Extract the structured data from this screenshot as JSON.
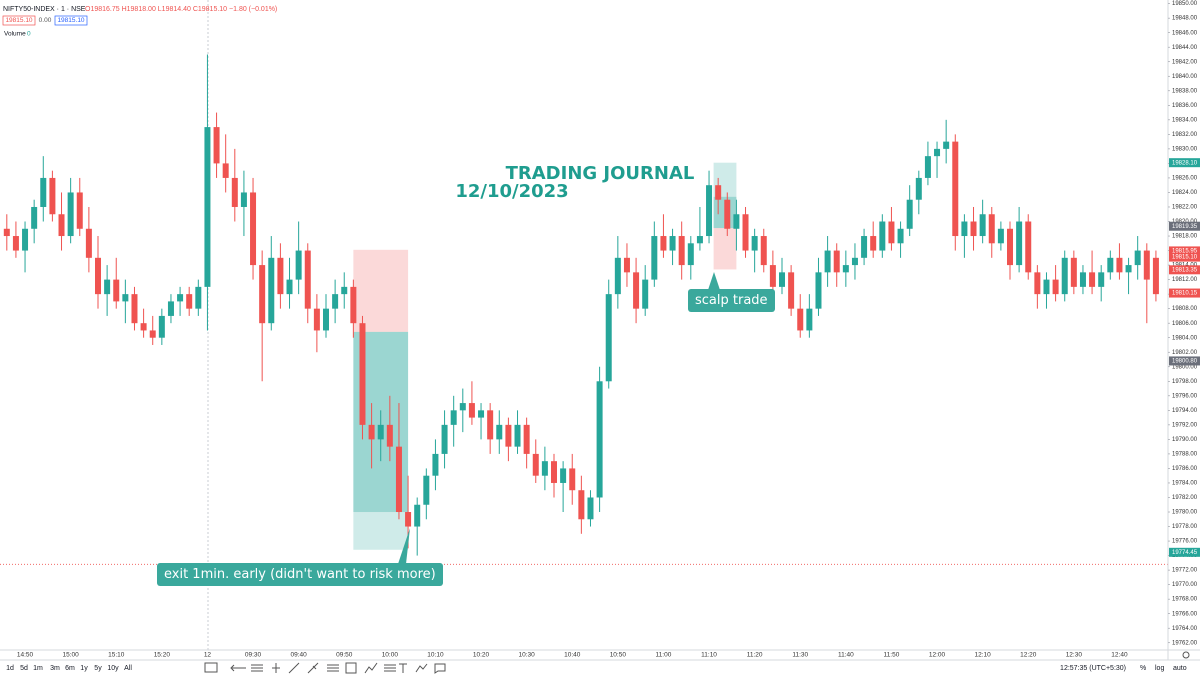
{
  "header": {
    "symbol": "NIFTY50-INDEX · 1 · NSE",
    "ohlc": "O19816.75 H19818.00 L19814.40 C19815.10 −1.80 (−0.01%)",
    "bid": "19815.10",
    "spread": "0.00",
    "ask": "19815.10",
    "volume_label": "Volume",
    "volume_value": "0"
  },
  "chart_data": {
    "type": "candlestick",
    "title": "TRADING JOURNAL",
    "subtitle": "12/10/2023",
    "categories": [
      null,
      null,
      "14:50",
      null,
      null,
      null,
      null,
      "15:00",
      null,
      null,
      null,
      null,
      "15:10",
      null,
      null,
      null,
      null,
      "15:20",
      null,
      null,
      null,
      null,
      "12",
      null,
      null,
      null,
      null,
      "09:30",
      null,
      null,
      null,
      null,
      "09:40",
      null,
      null,
      null,
      null,
      "09:50",
      null,
      null,
      null,
      null,
      "10:00",
      null,
      null,
      null,
      null,
      "10:10",
      null,
      null,
      null,
      null,
      "10:20",
      null,
      null,
      null,
      null,
      "10:30",
      null,
      null,
      null,
      null,
      "10:40",
      null,
      null,
      null,
      null,
      "10:50",
      null,
      null,
      null,
      null,
      "11:00",
      null,
      null,
      null,
      null,
      "11:10",
      null,
      null,
      null,
      null,
      "11:20",
      null,
      null,
      null,
      null,
      "11:30",
      null,
      null,
      null,
      null,
      "11:40",
      null,
      null,
      null,
      null,
      "11:50",
      null,
      null,
      null,
      null,
      "12:00",
      null,
      null,
      null,
      null,
      "12:10",
      null,
      null,
      null,
      null,
      "12:20",
      null,
      null,
      null,
      null,
      "12:30",
      null,
      null,
      null,
      null,
      "12:40",
      null,
      null,
      null,
      null
    ],
    "ohlc": [
      [
        19819,
        19821,
        19816,
        19818
      ],
      [
        19818,
        19820,
        19815,
        19816
      ],
      [
        19816,
        19820,
        19813,
        19819
      ],
      [
        19819,
        19823,
        19817,
        19822
      ],
      [
        19822,
        19829,
        19820,
        19826
      ],
      [
        19826,
        19827,
        19820,
        19821
      ],
      [
        19821,
        19824,
        19816,
        19818
      ],
      [
        19818,
        19826,
        19817,
        19824
      ],
      [
        19824,
        19826,
        19818,
        19819
      ],
      [
        19819,
        19822,
        19813,
        19815
      ],
      [
        19815,
        19818,
        19808,
        19810
      ],
      [
        19810,
        19814,
        19807,
        19812
      ],
      [
        19812,
        19815,
        19808,
        19809
      ],
      [
        19809,
        19812,
        19806,
        19810
      ],
      [
        19810,
        19811,
        19805,
        19806
      ],
      [
        19806,
        19808,
        19804,
        19805
      ],
      [
        19805,
        19807,
        19803,
        19804
      ],
      [
        19804,
        19808,
        19803,
        19807
      ],
      [
        19807,
        19810,
        19806,
        19809
      ],
      [
        19809,
        19811,
        19807,
        19810
      ],
      [
        19810,
        19811,
        19807,
        19808
      ],
      [
        19808,
        19812,
        19807,
        19811
      ],
      [
        19811,
        19843,
        19805,
        19833
      ],
      [
        19833,
        19835,
        19826,
        19828
      ],
      [
        19828,
        19832,
        19824,
        19826
      ],
      [
        19826,
        19830,
        19820,
        19822
      ],
      [
        19822,
        19827,
        19818,
        19824
      ],
      [
        19824,
        19826,
        19812,
        19814
      ],
      [
        19814,
        19816,
        19798,
        19806
      ],
      [
        19806,
        19818,
        19805,
        19815
      ],
      [
        19815,
        19817,
        19808,
        19810
      ],
      [
        19810,
        19815,
        19808,
        19812
      ],
      [
        19812,
        19820,
        19810,
        19816
      ],
      [
        19816,
        19817,
        19806,
        19808
      ],
      [
        19808,
        19810,
        19802,
        19805
      ],
      [
        19805,
        19810,
        19804,
        19808
      ],
      [
        19808,
        19812,
        19806,
        19810
      ],
      [
        19810,
        19813,
        19808,
        19811
      ],
      [
        19811,
        19812,
        19804,
        19806
      ],
      [
        19806,
        19807,
        19790,
        19792
      ],
      [
        19792,
        19795,
        19786,
        19790
      ],
      [
        19790,
        19794,
        19787,
        19792
      ],
      [
        19792,
        19796,
        19787,
        19789
      ],
      [
        19789,
        19795,
        19779,
        19780
      ],
      [
        19780,
        19785,
        19775,
        19778
      ],
      [
        19778,
        19782,
        19774,
        19781
      ],
      [
        19781,
        19786,
        19779,
        19785
      ],
      [
        19785,
        19790,
        19783,
        19788
      ],
      [
        19788,
        19794,
        19786,
        19792
      ],
      [
        19792,
        19796,
        19789,
        19794
      ],
      [
        19794,
        19797,
        19791,
        19795
      ],
      [
        19795,
        19798,
        19792,
        19793
      ],
      [
        19793,
        19795,
        19790,
        19794
      ],
      [
        19794,
        19795,
        19788,
        19790
      ],
      [
        19790,
        19794,
        19788,
        19792
      ],
      [
        19792,
        19793,
        19787,
        19789
      ],
      [
        19789,
        19794,
        19788,
        19792
      ],
      [
        19792,
        19793,
        19786,
        19788
      ],
      [
        19788,
        19790,
        19784,
        19785
      ],
      [
        19785,
        19789,
        19783,
        19787
      ],
      [
        19787,
        19788,
        19782,
        19784
      ],
      [
        19784,
        19787,
        19780,
        19786
      ],
      [
        19786,
        19788,
        19781,
        19783
      ],
      [
        19783,
        19785,
        19777,
        19779
      ],
      [
        19779,
        19783,
        19778,
        19782
      ],
      [
        19782,
        19800,
        19780,
        19798
      ],
      [
        19798,
        19812,
        19797,
        19810
      ],
      [
        19810,
        19818,
        19808,
        19815
      ],
      [
        19815,
        19817,
        19811,
        19813
      ],
      [
        19813,
        19815,
        19806,
        19808
      ],
      [
        19808,
        19814,
        19807,
        19812
      ],
      [
        19812,
        19820,
        19811,
        19818
      ],
      [
        19818,
        19821,
        19815,
        19816
      ],
      [
        19816,
        19819,
        19814,
        19818
      ],
      [
        19818,
        19820,
        19812,
        19814
      ],
      [
        19814,
        19818,
        19812,
        19817
      ],
      [
        19817,
        19822,
        19816,
        19818
      ],
      [
        19818,
        19827,
        19817,
        19825
      ],
      [
        19825,
        19826,
        19821,
        19823
      ],
      [
        19823,
        19824,
        19818,
        19819
      ],
      [
        19819,
        19823,
        19816,
        19821
      ],
      [
        19821,
        19822,
        19815,
        19816
      ],
      [
        19816,
        19819,
        19813,
        19818
      ],
      [
        19818,
        19819,
        19813,
        19814
      ],
      [
        19814,
        19816,
        19809,
        19811
      ],
      [
        19811,
        19815,
        19810,
        19813
      ],
      [
        19813,
        19814,
        19807,
        19808
      ],
      [
        19808,
        19810,
        19804,
        19805
      ],
      [
        19805,
        19810,
        19804,
        19808
      ],
      [
        19808,
        19815,
        19807,
        19813
      ],
      [
        19813,
        19818,
        19811,
        19816
      ],
      [
        19816,
        19817,
        19811,
        19813
      ],
      [
        19813,
        19816,
        19811,
        19814
      ],
      [
        19814,
        19817,
        19812,
        19815
      ],
      [
        19815,
        19819,
        19814,
        19818
      ],
      [
        19818,
        19820,
        19815,
        19816
      ],
      [
        19816,
        19821,
        19815,
        19820
      ],
      [
        19820,
        19822,
        19816,
        19817
      ],
      [
        19817,
        19820,
        19815,
        19819
      ],
      [
        19819,
        19825,
        19818,
        19823
      ],
      [
        19823,
        19827,
        19821,
        19826
      ],
      [
        19826,
        19831,
        19825,
        19829
      ],
      [
        19829,
        19831,
        19826,
        19830
      ],
      [
        19830,
        19834,
        19828,
        19831
      ],
      [
        19831,
        19832,
        19816,
        19818
      ],
      [
        19818,
        19821,
        19815,
        19820
      ],
      [
        19820,
        19822,
        19816,
        19818
      ],
      [
        19818,
        19823,
        19817,
        19821
      ],
      [
        19821,
        19822,
        19815,
        19817
      ],
      [
        19817,
        19820,
        19816,
        19819
      ],
      [
        19819,
        19820,
        19812,
        19814
      ],
      [
        19814,
        19822,
        19813,
        19820
      ],
      [
        19820,
        19821,
        19812,
        19813
      ],
      [
        19813,
        19814,
        19808,
        19810
      ],
      [
        19810,
        19813,
        19808,
        19812
      ],
      [
        19812,
        19814,
        19809,
        19810
      ],
      [
        19810,
        19816,
        19809,
        19815
      ],
      [
        19815,
        19816,
        19810,
        19811
      ],
      [
        19811,
        19814,
        19810,
        19813
      ],
      [
        19813,
        19816,
        19810,
        19811
      ],
      [
        19811,
        19814,
        19809,
        19813
      ],
      [
        19813,
        19816,
        19812,
        19815
      ],
      [
        19815,
        19817,
        19812,
        19813
      ],
      [
        19813,
        19815,
        19810,
        19814
      ],
      [
        19814,
        19818,
        19812,
        19816
      ],
      [
        19816,
        19817,
        19806,
        19812
      ],
      [
        19815,
        19816,
        19809,
        19810
      ]
    ],
    "up_color": "#26a69a",
    "down_color": "#ef5350",
    "ylim": [
      19761,
      19850.5
    ],
    "yticks": [
      {
        "value": 19762,
        "label": "19762.00"
      },
      {
        "value": 19764,
        "label": "19764.00"
      },
      {
        "value": 19766,
        "label": "19766.00"
      },
      {
        "value": 19768,
        "label": "19768.00"
      },
      {
        "value": 19770,
        "label": "19770.00"
      },
      {
        "value": 19772,
        "label": "19772.00"
      },
      {
        "value": 19774,
        "label": "19774.00"
      },
      {
        "value": 19776,
        "label": "19776.00"
      },
      {
        "value": 19778,
        "label": "19778.00"
      },
      {
        "value": 19780,
        "label": "19780.00"
      },
      {
        "value": 19782,
        "label": "19782.00"
      },
      {
        "value": 19784,
        "label": "19784.00"
      },
      {
        "value": 19786,
        "label": "19786.00"
      },
      {
        "value": 19788,
        "label": "19788.00"
      },
      {
        "value": 19790,
        "label": "19790.00"
      },
      {
        "value": 19792,
        "label": "19792.00"
      },
      {
        "value": 19794,
        "label": "19794.00"
      },
      {
        "value": 19796,
        "label": "19796.00"
      },
      {
        "value": 19798,
        "label": "19798.00"
      },
      {
        "value": 19800,
        "label": "19800.00"
      },
      {
        "value": 19802,
        "label": "19802.00"
      },
      {
        "value": 19804,
        "label": "19804.00"
      },
      {
        "value": 19806,
        "label": "19806.00"
      },
      {
        "value": 19808,
        "label": "19808.00"
      },
      {
        "value": 19810,
        "label": "19810.00"
      },
      {
        "value": 19812,
        "label": "19812.00"
      },
      {
        "value": 19814,
        "label": "19814.00"
      },
      {
        "value": 19816,
        "label": "19816.00"
      },
      {
        "value": 19818,
        "label": "19818.00"
      },
      {
        "value": 19820,
        "label": "19820.00"
      },
      {
        "value": 19822,
        "label": "19822.00"
      },
      {
        "value": 19824,
        "label": "19824.00"
      },
      {
        "value": 19826,
        "label": "19826.00"
      },
      {
        "value": 19828,
        "label": "19828.00"
      },
      {
        "value": 19830,
        "label": "19830.00"
      },
      {
        "value": 19832,
        "label": "19832.00"
      },
      {
        "value": 19834,
        "label": "19834.00"
      },
      {
        "value": 19836,
        "label": "19836.00"
      },
      {
        "value": 19838,
        "label": "19838.00"
      },
      {
        "value": 19840,
        "label": "19840.00"
      },
      {
        "value": 19842,
        "label": "19842.00"
      },
      {
        "value": 19844,
        "label": "19844.00"
      },
      {
        "value": 19846,
        "label": "19846.00"
      },
      {
        "value": 19848,
        "label": "19848.00"
      },
      {
        "value": 19850,
        "label": "19850.00"
      }
    ],
    "grid": false,
    "hline": 19772.8,
    "price_labels": [
      {
        "value": 19828.1,
        "label": "19828.10",
        "color": "#26a69a"
      },
      {
        "value": 19819.35,
        "label": "19819.35",
        "color": "#6b6f7a"
      },
      {
        "value": 19815.95,
        "label": "19815.95",
        "color": "#ef5350"
      },
      {
        "value": 19815.1,
        "label": "19815.10",
        "color": "#ef5350"
      },
      {
        "value": 19813.35,
        "label": "19813.35",
        "color": "#ef5350"
      },
      {
        "value": 19810.15,
        "label": "19810.15",
        "color": "#ef5350"
      },
      {
        "value": 19800.8,
        "label": "19800.80",
        "color": "#6b6f7a"
      },
      {
        "value": 19774.45,
        "label": "19774.45",
        "color": "#26a69a"
      }
    ],
    "positions": [
      {
        "side": "short",
        "start": 38,
        "end": 44,
        "stop": 19816.1,
        "entry": 19804.8,
        "target": 19774.8,
        "reached": 19780
      },
      {
        "side": "long",
        "start": 77.5,
        "end": 80,
        "stop": 19813.4,
        "entry": 19819.1,
        "target": 19828.1,
        "reached": 19823.4
      }
    ],
    "annotations": [
      {
        "text": "scalp trade"
      },
      {
        "text": "exit 1min. early (didn't want to risk more)"
      }
    ]
  },
  "toolbar": {
    "ranges": [
      "1d",
      "5d",
      "1m",
      "3m",
      "6m",
      "1y",
      "5y",
      "10y",
      "All"
    ],
    "clock": "12:57:35 (UTC+5:30)",
    "scale_options": [
      "%",
      "log",
      "auto"
    ]
  }
}
